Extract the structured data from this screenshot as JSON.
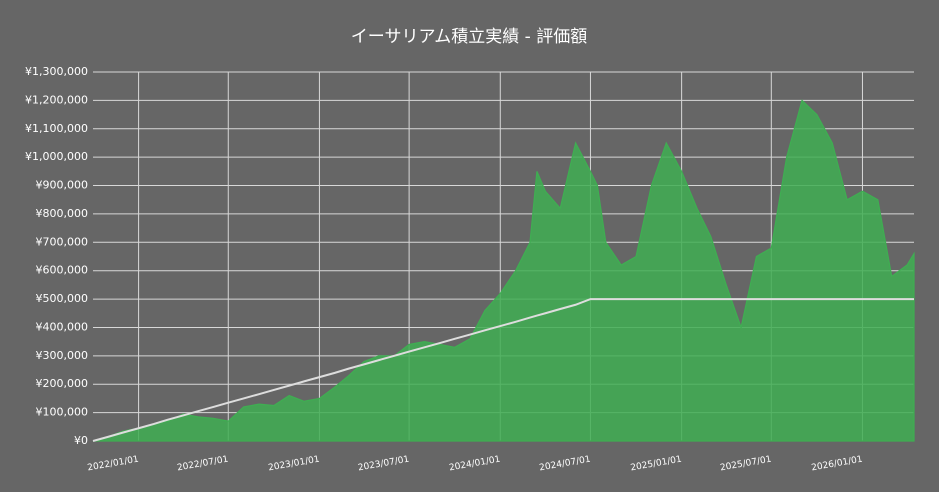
{
  "chart_data": {
    "type": "area",
    "title": "イーサリアム積立実績  -  評価額",
    "x": [
      "2021/10/01",
      "2021/11/01",
      "2021/12/01",
      "2022/01/01",
      "2022/02/01",
      "2022/03/01",
      "2022/04/01",
      "2022/05/01",
      "2022/06/01",
      "2022/07/01",
      "2022/08/01",
      "2022/09/01",
      "2022/10/01",
      "2022/11/01",
      "2022/12/01",
      "2023/01/01",
      "2023/02/01",
      "2023/03/01",
      "2023/04/01",
      "2023/05/01",
      "2023/06/01",
      "2023/07/01",
      "2023/08/01",
      "2023/09/01",
      "2023/10/01",
      "2023/11/01",
      "2023/12/01",
      "2024/01/01",
      "2024/02/01",
      "2024/03/01",
      "2024/03/15",
      "2024/04/01",
      "2024/05/01",
      "2024/06/01",
      "2024/07/01",
      "2024/07/15",
      "2024/08/01",
      "2024/09/01",
      "2024/10/01",
      "2024/11/01",
      "2024/12/01",
      "2025/01/01",
      "2025/02/01",
      "2025/03/01",
      "2025/04/01",
      "2025/05/01",
      "2025/06/01",
      "2025/07/01",
      "2025/08/01",
      "2025/09/01",
      "2025/10/01",
      "2025/11/01",
      "2025/12/01",
      "2026/01/01",
      "2026/02/01",
      "2026/03/01",
      "2026/04/01",
      "2026/04/15"
    ],
    "series": [
      {
        "color": "#3fae52",
        "values": [
          0,
          15000,
          35000,
          45000,
          60000,
          70000,
          95000,
          85000,
          80000,
          70000,
          120000,
          130000,
          125000,
          160000,
          140000,
          150000,
          190000,
          230000,
          280000,
          300000,
          300000,
          340000,
          350000,
          340000,
          330000,
          360000,
          460000,
          520000,
          600000,
          700000,
          950000,
          880000,
          820000,
          1050000,
          950000,
          900000,
          700000,
          620000,
          650000,
          900000,
          1050000,
          950000,
          820000,
          720000,
          550000,
          400000,
          650000,
          680000,
          1000000,
          1200000,
          1150000,
          1050000,
          850000,
          880000,
          850000,
          580000,
          620000,
          660000
        ]
      },
      {
        "color": "#dddddd",
        "values": [
          0,
          15000,
          30000,
          45000,
          60000,
          75000,
          90000,
          105000,
          120000,
          135000,
          150000,
          165000,
          180000,
          195000,
          210000,
          225000,
          240000,
          255000,
          270000,
          285000,
          300000,
          315000,
          330000,
          345000,
          360000,
          375000,
          390000,
          405000,
          420000,
          435000,
          442000,
          450000,
          465000,
          480000,
          500000,
          500000,
          500000,
          500000,
          500000,
          500000,
          500000,
          500000,
          500000,
          500000,
          500000,
          500000,
          500000,
          500000,
          500000,
          500000,
          500000,
          500000,
          500000,
          500000,
          500000,
          500000,
          500000,
          500000
        ]
      }
    ],
    "xlim": [
      "2021/10/01",
      "2026/04/15"
    ],
    "xticks": [
      "2022/01/01",
      "2022/07/01",
      "2023/01/01",
      "2023/07/01",
      "2024/01/01",
      "2024/07/01",
      "2025/01/01",
      "2025/07/01",
      "2026/01/01"
    ],
    "ylim": [
      0,
      1300000
    ],
    "yticks": [
      {
        "value": 0,
        "label": "¥0"
      },
      {
        "value": 100000,
        "label": "¥100,000"
      },
      {
        "value": 200000,
        "label": "¥200,000"
      },
      {
        "value": 300000,
        "label": "¥300,000"
      },
      {
        "value": 400000,
        "label": "¥400,000"
      },
      {
        "value": 500000,
        "label": "¥500,000"
      },
      {
        "value": 600000,
        "label": "¥600,000"
      },
      {
        "value": 700000,
        "label": "¥700,000"
      },
      {
        "value": 800000,
        "label": "¥800,000"
      },
      {
        "value": 900000,
        "label": "¥900,000"
      },
      {
        "value": 1000000,
        "label": "¥1,000,000"
      },
      {
        "value": 1100000,
        "label": "¥1,100,000"
      },
      {
        "value": 1200000,
        "label": "¥1,200,000"
      },
      {
        "value": 1300000,
        "label": "¥1,300,000"
      }
    ],
    "grid": true
  }
}
